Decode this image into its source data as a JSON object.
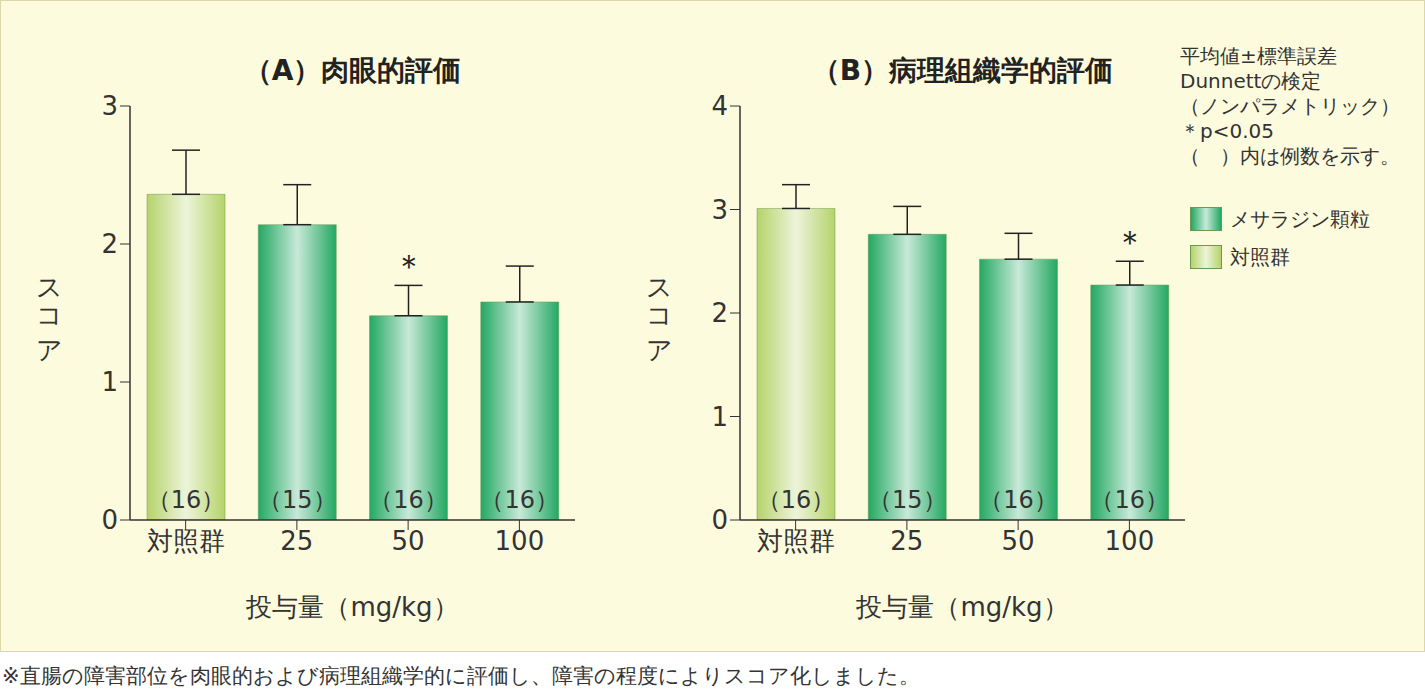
{
  "chart_data": [
    {
      "type": "bar",
      "title": "（A）肉眼的評価",
      "x_label": "投与量（mg/kg）",
      "y_label": "スコア",
      "categories": [
        "対照群",
        "25",
        "50",
        "100"
      ],
      "values": [
        2.36,
        2.14,
        1.48,
        1.58
      ],
      "error": [
        0.32,
        0.29,
        0.22,
        0.26
      ],
      "n_labels": [
        "（16）",
        "（15）",
        "（16）",
        "（16）"
      ],
      "significance": [
        null,
        null,
        "＊",
        null
      ],
      "colors": [
        "#b5d36a",
        "#23a862",
        "#23a862",
        "#23a862"
      ],
      "ylim": [
        0,
        3
      ],
      "yticks": [
        0,
        1,
        2,
        3
      ]
    },
    {
      "type": "bar",
      "title": "（B）病理組織学的評価",
      "x_label": "投与量（mg/kg）",
      "y_label": "スコア",
      "categories": [
        "対照群",
        "25",
        "50",
        "100"
      ],
      "values": [
        3.01,
        2.76,
        2.52,
        2.27
      ],
      "error": [
        0.23,
        0.27,
        0.25,
        0.23
      ],
      "n_labels": [
        "（16）",
        "（15）",
        "（16）",
        "（16）"
      ],
      "significance": [
        null,
        null,
        null,
        "＊"
      ],
      "colors": [
        "#b5d36a",
        "#23a862",
        "#23a862",
        "#23a862"
      ],
      "ylim": [
        0,
        4
      ],
      "yticks": [
        0,
        1,
        2,
        3,
        4
      ]
    }
  ],
  "notes": [
    "平均値±標準誤差",
    "Dunnettの検定",
    "（ノンパラメトリック）",
    "＊p<0.05",
    "（　）内は例数を示す。"
  ],
  "legend_items": [
    {
      "name": "メサラジン顆粒",
      "color": "#23a862"
    },
    {
      "name": "対照群",
      "color": "#b5d36a"
    }
  ],
  "footnote": "※直腸の障害部位を肉眼的および病理組織学的に評価し、障害の程度によりスコア化しました。"
}
